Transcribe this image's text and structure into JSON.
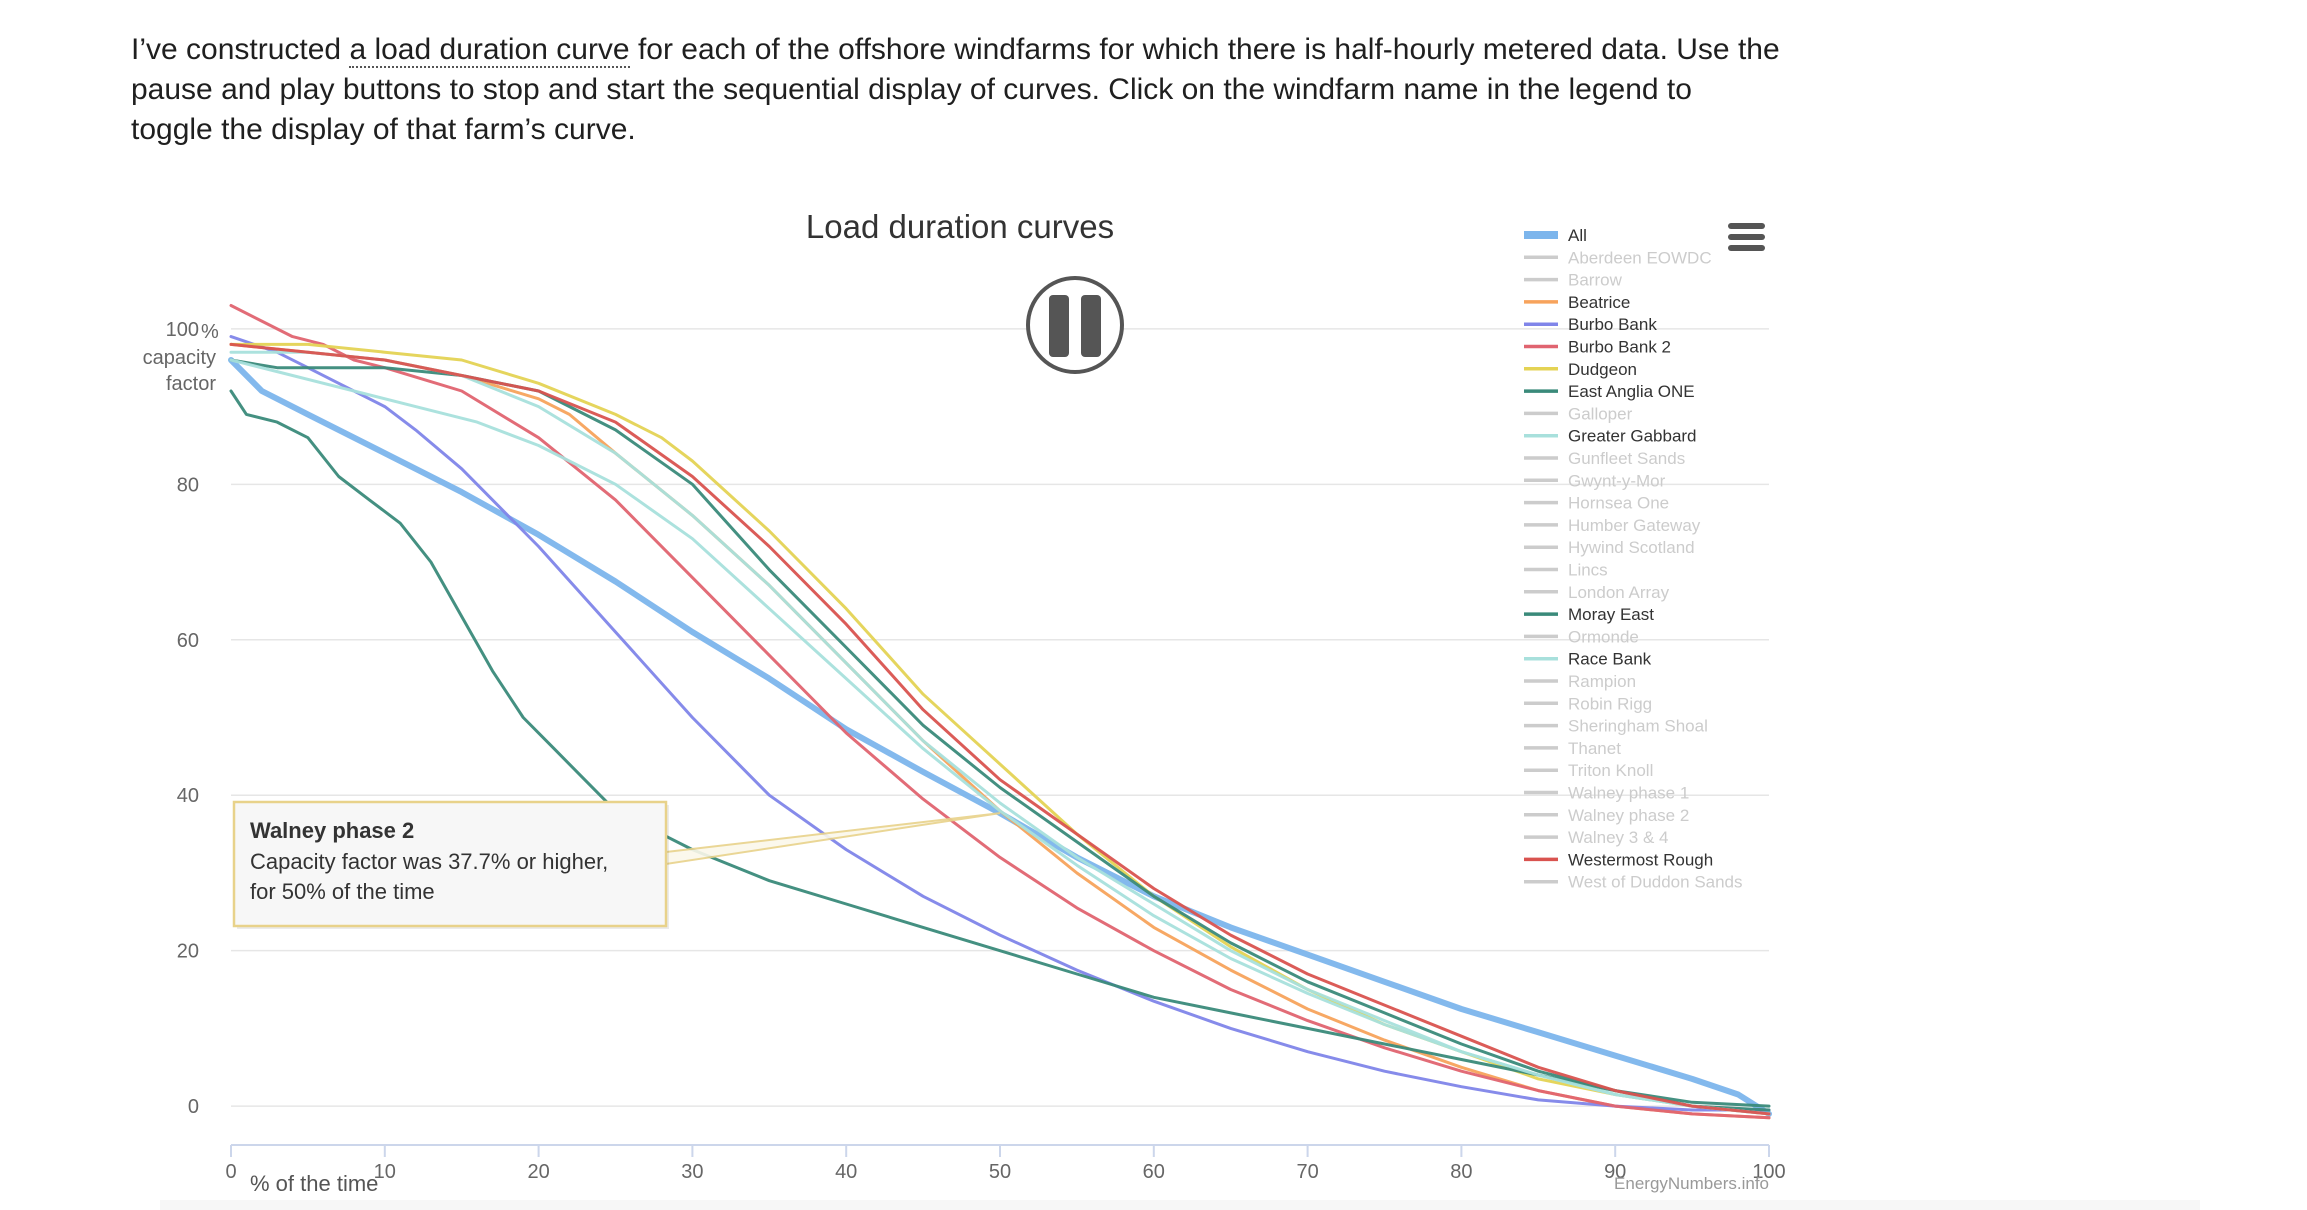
{
  "intro": {
    "before": "I’ve constructed ",
    "link": "a load duration curve",
    "after": " for each of the offshore windfarms for which there is half-hourly metered data. Use the pause and play buttons to stop and start the sequential display of curves. Click on the windfarm name in the legend to toggle the display of that farm’s curve."
  },
  "icons": {
    "menu": "hamburger-menu-icon",
    "pause": "pause-icon"
  },
  "credit": "EnergyNumbers.info",
  "tooltip": {
    "title": "Walney phase 2",
    "line1": "Capacity factor was 37.7% or higher,",
    "line2": "for 50% of the time"
  },
  "colors": {
    "inactive": "#cccccc",
    "grid": "#e6e6e6",
    "axis": "#ccd6eb",
    "tooltip_border": "#e8d28a"
  },
  "chart_data": {
    "type": "line",
    "title": "Load duration curves",
    "xlabel": "% of the time",
    "ylabel": "capacity factor",
    "y_unit": "%",
    "xlim": [
      0,
      100
    ],
    "ylim": [
      -5,
      105
    ],
    "xticks": [
      0,
      10,
      20,
      30,
      40,
      50,
      60,
      70,
      80,
      90,
      100
    ],
    "yticks": [
      0,
      20,
      40,
      60,
      80,
      100
    ],
    "grid": true,
    "legend_position": "top-right",
    "highlight": {
      "x": 50,
      "y": 37.7
    },
    "series": [
      {
        "name": "All",
        "color": "#7cb5ec",
        "width": 6,
        "visible": true,
        "points": [
          [
            0,
            96
          ],
          [
            1,
            94
          ],
          [
            2,
            92
          ],
          [
            5,
            89
          ],
          [
            10,
            84
          ],
          [
            15,
            79
          ],
          [
            20,
            73.5
          ],
          [
            25,
            67.5
          ],
          [
            30,
            61
          ],
          [
            35,
            55
          ],
          [
            40,
            48.5
          ],
          [
            45,
            43
          ],
          [
            50,
            37.7
          ],
          [
            55,
            32
          ],
          [
            60,
            27
          ],
          [
            65,
            23
          ],
          [
            70,
            19.5
          ],
          [
            75,
            16
          ],
          [
            80,
            12.5
          ],
          [
            85,
            9.5
          ],
          [
            90,
            6.5
          ],
          [
            95,
            3.5
          ],
          [
            98,
            1.5
          ],
          [
            100,
            -1
          ]
        ]
      },
      {
        "name": "Aberdeen EOWDC",
        "color": "#cccccc",
        "visible": false,
        "points": []
      },
      {
        "name": "Barrow",
        "color": "#cccccc",
        "visible": false,
        "points": []
      },
      {
        "name": "Beatrice",
        "color": "#f7a35c",
        "width": 3,
        "visible": true,
        "points": [
          [
            0,
            98
          ],
          [
            5,
            97
          ],
          [
            10,
            96
          ],
          [
            15,
            94
          ],
          [
            20,
            91
          ],
          [
            22,
            89
          ],
          [
            25,
            84
          ],
          [
            30,
            76
          ],
          [
            35,
            67
          ],
          [
            40,
            57
          ],
          [
            45,
            47
          ],
          [
            50,
            38
          ],
          [
            55,
            30
          ],
          [
            60,
            23
          ],
          [
            65,
            17.5
          ],
          [
            70,
            12.5
          ],
          [
            75,
            8.5
          ],
          [
            80,
            5
          ],
          [
            85,
            2
          ],
          [
            90,
            0
          ],
          [
            95,
            -1
          ],
          [
            100,
            -1.5
          ]
        ]
      },
      {
        "name": "Burbo Bank",
        "color": "#8085e9",
        "width": 3,
        "visible": true,
        "points": [
          [
            0,
            99
          ],
          [
            3,
            97
          ],
          [
            5,
            95
          ],
          [
            7,
            93
          ],
          [
            10,
            90
          ],
          [
            12,
            87
          ],
          [
            15,
            82
          ],
          [
            18,
            76
          ],
          [
            20,
            72
          ],
          [
            25,
            61
          ],
          [
            30,
            50
          ],
          [
            35,
            40
          ],
          [
            40,
            33
          ],
          [
            45,
            27
          ],
          [
            50,
            22
          ],
          [
            55,
            17.5
          ],
          [
            60,
            13.5
          ],
          [
            65,
            10
          ],
          [
            70,
            7
          ],
          [
            75,
            4.5
          ],
          [
            80,
            2.5
          ],
          [
            85,
            0.8
          ],
          [
            90,
            0
          ],
          [
            95,
            -0.5
          ],
          [
            100,
            -0.5
          ]
        ]
      },
      {
        "name": "Burbo Bank 2",
        "color": "#e06470",
        "width": 3,
        "visible": true,
        "points": [
          [
            0,
            103
          ],
          [
            2,
            101
          ],
          [
            4,
            99
          ],
          [
            6,
            98
          ],
          [
            8,
            96
          ],
          [
            10,
            95
          ],
          [
            15,
            92
          ],
          [
            20,
            86
          ],
          [
            25,
            78
          ],
          [
            30,
            68
          ],
          [
            35,
            58
          ],
          [
            40,
            48
          ],
          [
            45,
            39.5
          ],
          [
            50,
            32
          ],
          [
            55,
            25.5
          ],
          [
            60,
            20
          ],
          [
            65,
            15
          ],
          [
            70,
            11
          ],
          [
            75,
            7.5
          ],
          [
            80,
            4.5
          ],
          [
            85,
            2
          ],
          [
            90,
            0
          ],
          [
            95,
            -1
          ],
          [
            100,
            -1.5
          ]
        ]
      },
      {
        "name": "Dudgeon",
        "color": "#e4d354",
        "width": 3,
        "visible": true,
        "points": [
          [
            0,
            98
          ],
          [
            5,
            98
          ],
          [
            10,
            97
          ],
          [
            15,
            96
          ],
          [
            20,
            93
          ],
          [
            25,
            89
          ],
          [
            28,
            86
          ],
          [
            30,
            83
          ],
          [
            35,
            74
          ],
          [
            40,
            64
          ],
          [
            45,
            53
          ],
          [
            50,
            44
          ],
          [
            55,
            35
          ],
          [
            60,
            27
          ],
          [
            65,
            20.5
          ],
          [
            70,
            15
          ],
          [
            75,
            10.5
          ],
          [
            80,
            7
          ],
          [
            85,
            3.5
          ],
          [
            90,
            1.5
          ],
          [
            95,
            0
          ],
          [
            100,
            -1
          ]
        ]
      },
      {
        "name": "East Anglia ONE",
        "color": "#3a8a7a",
        "width": 3,
        "visible": true,
        "points": [
          [
            0,
            96
          ],
          [
            3,
            95
          ],
          [
            10,
            95
          ],
          [
            15,
            94
          ],
          [
            20,
            92
          ],
          [
            25,
            87
          ],
          [
            30,
            80
          ],
          [
            35,
            69
          ],
          [
            40,
            59
          ],
          [
            45,
            49
          ],
          [
            50,
            41
          ],
          [
            55,
            34
          ],
          [
            60,
            27
          ],
          [
            65,
            21
          ],
          [
            70,
            16
          ],
          [
            75,
            12
          ],
          [
            80,
            8
          ],
          [
            85,
            4.5
          ],
          [
            90,
            2
          ],
          [
            95,
            0
          ],
          [
            100,
            -0.5
          ]
        ]
      },
      {
        "name": "Galloper",
        "color": "#cccccc",
        "visible": false,
        "points": []
      },
      {
        "name": "Greater Gabbard",
        "color": "#a8e0dc",
        "width": 3,
        "visible": true,
        "points": [
          [
            0,
            96
          ],
          [
            4,
            94
          ],
          [
            8,
            92
          ],
          [
            12,
            90
          ],
          [
            16,
            88
          ],
          [
            20,
            85
          ],
          [
            25,
            80
          ],
          [
            30,
            73
          ],
          [
            35,
            64
          ],
          [
            40,
            55
          ],
          [
            45,
            46
          ],
          [
            50,
            38
          ],
          [
            55,
            31
          ],
          [
            60,
            24.5
          ],
          [
            65,
            19
          ],
          [
            70,
            14.5
          ],
          [
            75,
            10.5
          ],
          [
            80,
            7
          ],
          [
            85,
            4
          ],
          [
            90,
            1.5
          ],
          [
            95,
            0
          ],
          [
            100,
            -1
          ]
        ]
      },
      {
        "name": "Gunfleet Sands",
        "color": "#cccccc",
        "visible": false,
        "points": []
      },
      {
        "name": "Gwynt-y-Mor",
        "color": "#cccccc",
        "visible": false,
        "points": []
      },
      {
        "name": "Hornsea One",
        "color": "#cccccc",
        "visible": false,
        "points": []
      },
      {
        "name": "Humber Gateway",
        "color": "#cccccc",
        "visible": false,
        "points": []
      },
      {
        "name": "Hywind Scotland",
        "color": "#cccccc",
        "visible": false,
        "points": []
      },
      {
        "name": "Lincs",
        "color": "#cccccc",
        "visible": false,
        "points": []
      },
      {
        "name": "London Array",
        "color": "#cccccc",
        "visible": false,
        "points": []
      },
      {
        "name": "Moray East",
        "color": "#3a8a7a",
        "width": 3,
        "visible": true,
        "points": [
          [
            0,
            92
          ],
          [
            1,
            89
          ],
          [
            3,
            88
          ],
          [
            5,
            86
          ],
          [
            7,
            81
          ],
          [
            9,
            78
          ],
          [
            11,
            75
          ],
          [
            13,
            70
          ],
          [
            15,
            63
          ],
          [
            17,
            56
          ],
          [
            19,
            50
          ],
          [
            21,
            46
          ],
          [
            23,
            42
          ],
          [
            25,
            38
          ],
          [
            27,
            36
          ],
          [
            30,
            33
          ],
          [
            35,
            29
          ],
          [
            40,
            26
          ],
          [
            45,
            23
          ],
          [
            50,
            20
          ],
          [
            55,
            17
          ],
          [
            60,
            14
          ],
          [
            65,
            12
          ],
          [
            70,
            10
          ],
          [
            75,
            8
          ],
          [
            80,
            6
          ],
          [
            85,
            4
          ],
          [
            90,
            2
          ],
          [
            95,
            0.5
          ],
          [
            100,
            0
          ]
        ]
      },
      {
        "name": "Ormonde",
        "color": "#cccccc",
        "visible": false,
        "points": []
      },
      {
        "name": "Race Bank",
        "color": "#a8e0dc",
        "width": 3,
        "visible": true,
        "points": [
          [
            0,
            97
          ],
          [
            5,
            97
          ],
          [
            10,
            96
          ],
          [
            15,
            94
          ],
          [
            20,
            90
          ],
          [
            25,
            84
          ],
          [
            30,
            76
          ],
          [
            35,
            67
          ],
          [
            40,
            57
          ],
          [
            45,
            47
          ],
          [
            50,
            39
          ],
          [
            55,
            32
          ],
          [
            60,
            26
          ],
          [
            65,
            20
          ],
          [
            70,
            15
          ],
          [
            75,
            11
          ],
          [
            80,
            7
          ],
          [
            85,
            4
          ],
          [
            90,
            1.5
          ],
          [
            95,
            0
          ],
          [
            100,
            -1
          ]
        ]
      },
      {
        "name": "Rampion",
        "color": "#cccccc",
        "visible": false,
        "points": []
      },
      {
        "name": "Robin Rigg",
        "color": "#cccccc",
        "visible": false,
        "points": []
      },
      {
        "name": "Sheringham Shoal",
        "color": "#cccccc",
        "visible": false,
        "points": []
      },
      {
        "name": "Thanet",
        "color": "#cccccc",
        "visible": false,
        "points": []
      },
      {
        "name": "Triton Knoll",
        "color": "#cccccc",
        "visible": false,
        "points": []
      },
      {
        "name": "Walney phase 1",
        "color": "#cccccc",
        "visible": false,
        "points": []
      },
      {
        "name": "Walney phase 2",
        "color": "#cccccc",
        "visible": false,
        "points": []
      },
      {
        "name": "Walney 3 & 4",
        "color": "#cccccc",
        "visible": false,
        "points": []
      },
      {
        "name": "Westermost Rough",
        "color": "#d9534f",
        "width": 3,
        "visible": true,
        "points": [
          [
            0,
            98
          ],
          [
            5,
            97
          ],
          [
            10,
            96
          ],
          [
            15,
            94
          ],
          [
            20,
            92
          ],
          [
            25,
            88
          ],
          [
            30,
            81
          ],
          [
            35,
            72
          ],
          [
            40,
            62
          ],
          [
            45,
            51
          ],
          [
            50,
            42
          ],
          [
            55,
            35
          ],
          [
            60,
            28
          ],
          [
            65,
            22
          ],
          [
            70,
            17
          ],
          [
            75,
            13
          ],
          [
            80,
            9
          ],
          [
            85,
            5
          ],
          [
            90,
            2
          ],
          [
            95,
            0
          ],
          [
            100,
            -1
          ]
        ]
      },
      {
        "name": "West of Duddon Sands",
        "color": "#cccccc",
        "visible": false,
        "points": []
      }
    ]
  }
}
